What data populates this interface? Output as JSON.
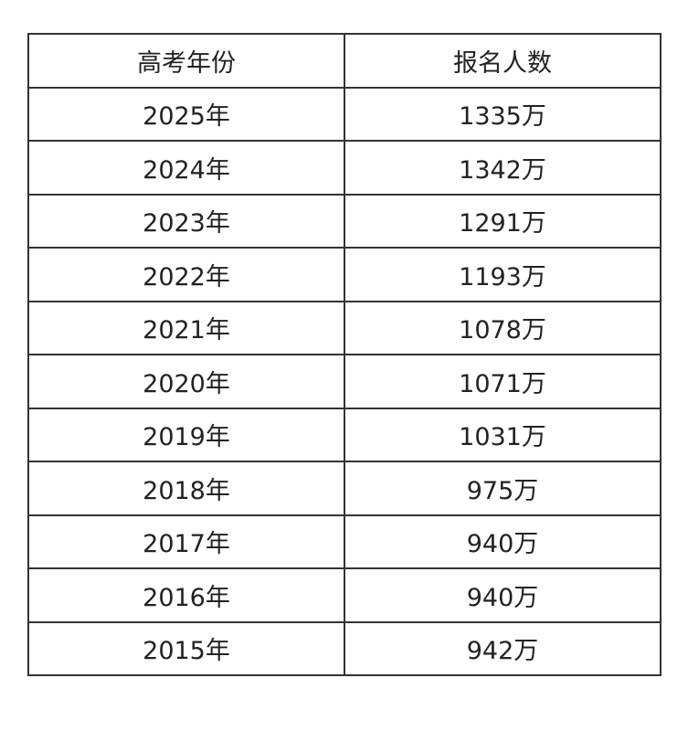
{
  "table": {
    "headers": [
      "高考年份",
      "报名人数"
    ],
    "rows": [
      [
        "2025年",
        "1335万"
      ],
      [
        "2024年",
        "1342万"
      ],
      [
        "2023年",
        "1291万"
      ],
      [
        "2022年",
        "1193万"
      ],
      [
        "2021年",
        "1078万"
      ],
      [
        "2020年",
        "1071万"
      ],
      [
        "2019年",
        "1031万"
      ],
      [
        "2018年",
        "975万"
      ],
      [
        "2017年",
        "940万"
      ],
      [
        "2016年",
        "940万"
      ],
      [
        "2015年",
        "942万"
      ]
    ]
  }
}
